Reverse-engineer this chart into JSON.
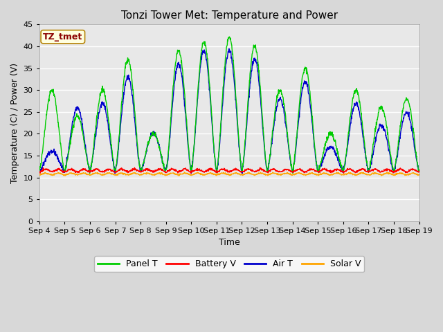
{
  "title": "Tonzi Tower Met: Temperature and Power",
  "xlabel": "Time",
  "ylabel": "Temperature (C) / Power (V)",
  "ylim": [
    0,
    45
  ],
  "yticks": [
    0,
    5,
    10,
    15,
    20,
    25,
    30,
    35,
    40,
    45
  ],
  "xtick_labels": [
    "Sep 4",
    "Sep 5",
    "Sep 6",
    "Sep 7",
    "Sep 8",
    "Sep 9",
    "Sep 10",
    "Sep 11",
    "Sep 12",
    "Sep 13",
    "Sep 14",
    "Sep 15",
    "Sep 16",
    "Sep 17",
    "Sep 18",
    "Sep 19"
  ],
  "annotation_text": "TZ_tmet",
  "annotation_color": "#8B0000",
  "annotation_bg": "#FFFFE0",
  "annotation_border": "#B8860B",
  "panel_T_color": "#00CC00",
  "battery_V_color": "#FF0000",
  "air_T_color": "#0000CC",
  "solar_V_color": "#FFA500",
  "bg_color": "#D8D8D8",
  "plot_bg_color": "#E8E8E8",
  "grid_color": "#FFFFFF",
  "title_fontsize": 11,
  "axis_fontsize": 9,
  "tick_fontsize": 8,
  "legend_fontsize": 9,
  "n_days": 15,
  "panel_peaks": [
    30,
    24,
    30,
    37,
    20,
    39,
    41,
    42,
    40,
    30,
    35,
    20,
    30,
    26,
    28
  ],
  "air_peaks": [
    16,
    26,
    27,
    33,
    20,
    36,
    39,
    39,
    37,
    28,
    32,
    17,
    27,
    22,
    25
  ],
  "night_min": 11.5,
  "battery_base": 11.5,
  "solar_base": 10.7
}
